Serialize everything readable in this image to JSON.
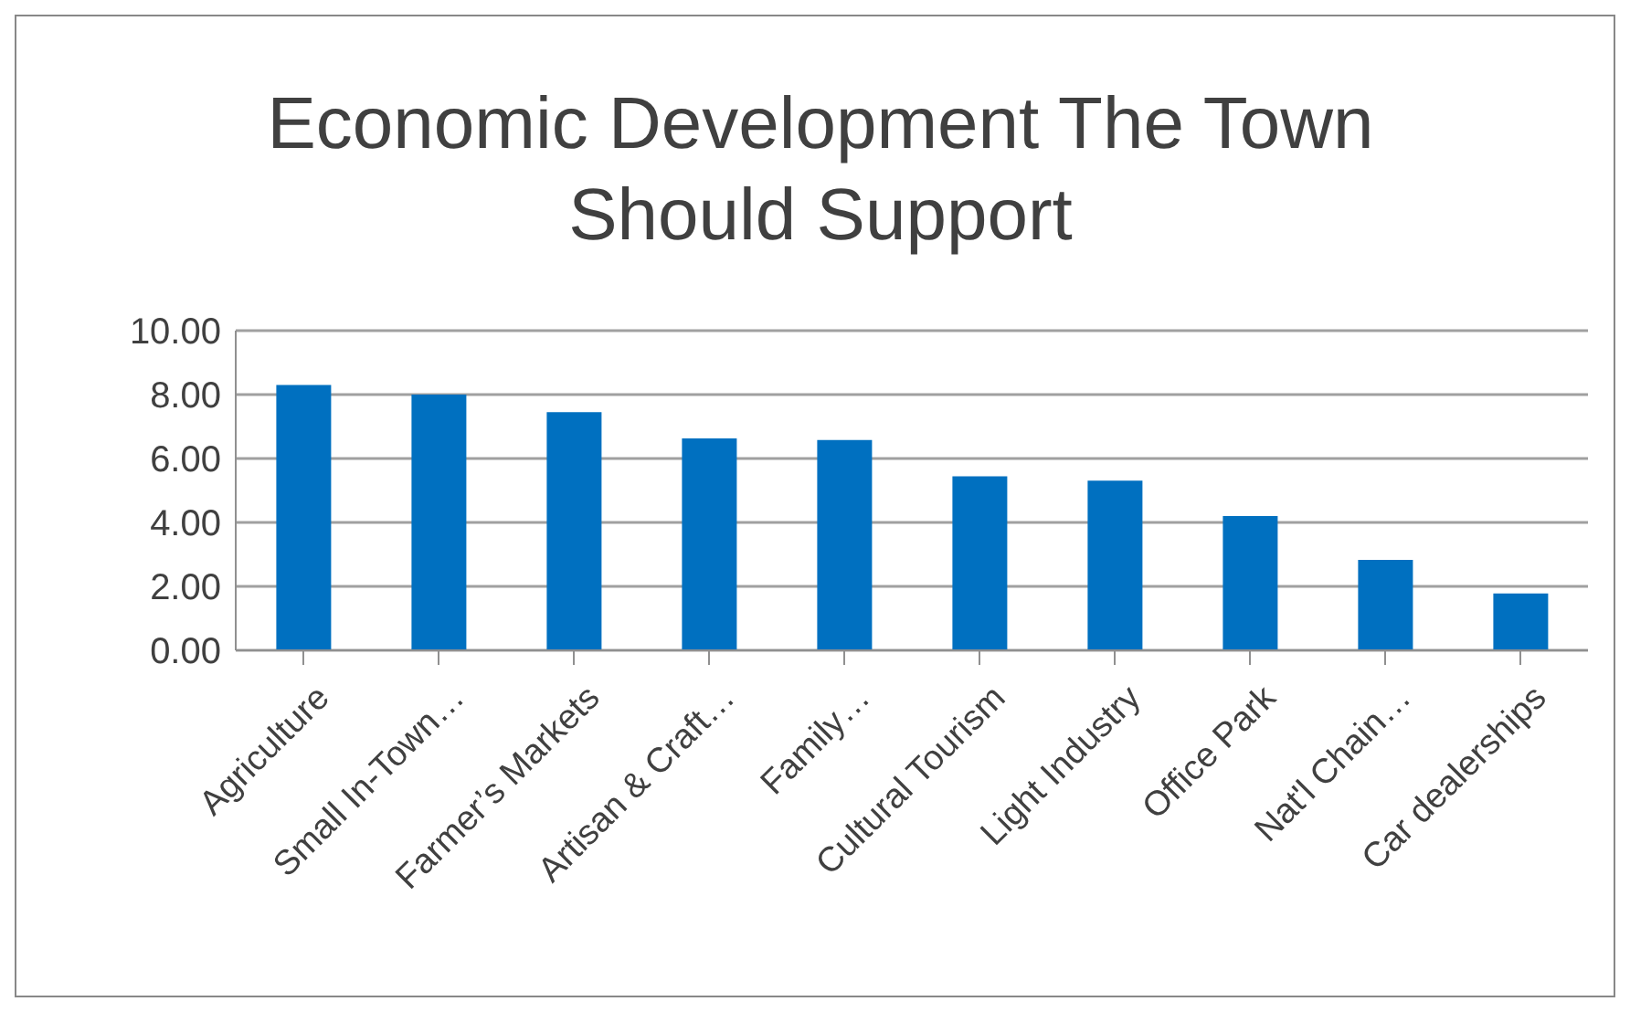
{
  "chart_data": {
    "type": "bar",
    "title": "Economic Development The Town Should Support",
    "categories": [
      "Agriculture",
      "Small In-Town…",
      "Farmer’s Markets",
      "Artisan & Craft…",
      "Family…",
      "Cultural Tourism",
      "Light Industry",
      "Office Park",
      "Nat'l Chain…",
      "Car dealerships"
    ],
    "values": [
      8.3,
      8.0,
      7.45,
      6.63,
      6.58,
      5.44,
      5.31,
      4.2,
      2.83,
      1.78
    ],
    "color": "#0070c0",
    "ylim": [
      0,
      10
    ],
    "yticks": [
      {
        "value": 0,
        "label": "0.00"
      },
      {
        "value": 2,
        "label": "2.00"
      },
      {
        "value": 4,
        "label": "4.00"
      },
      {
        "value": 6,
        "label": "6.00"
      },
      {
        "value": 8,
        "label": "8.00"
      },
      {
        "value": 10,
        "label": "10.00"
      }
    ],
    "grid": "y"
  }
}
